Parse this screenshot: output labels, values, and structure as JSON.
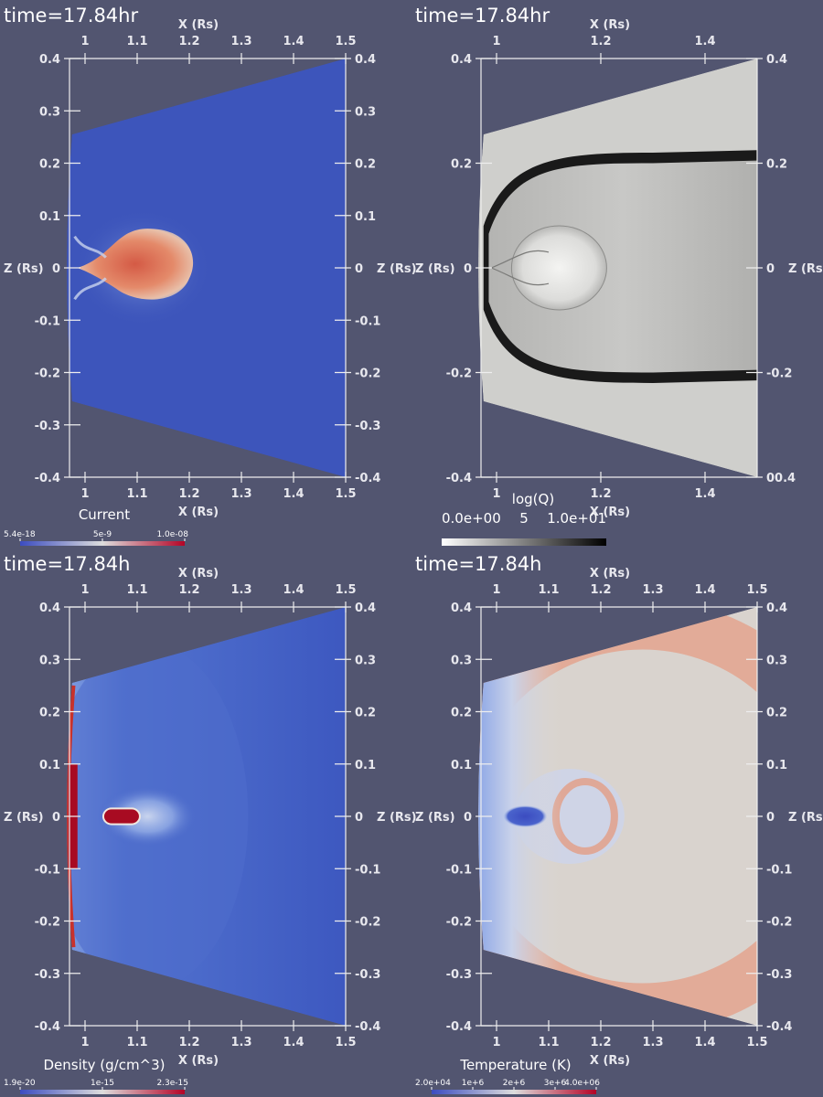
{
  "chart_data": [
    {
      "type": "heatmap",
      "time_label": "time=17.84hr",
      "quantity": "Current",
      "colorbar": {
        "title": "Current",
        "ticks": [
          "5.4e-18",
          "5e-9",
          "1.0e-08"
        ],
        "colors": [
          "#3b4cc0",
          "#dddddd",
          "#b40426"
        ]
      },
      "xlabel": "X (Rs)",
      "ylabel": "Z (Rs)",
      "xticks": [
        "1",
        "1.1",
        "1.2",
        "1.3",
        "1.4",
        "1.5"
      ],
      "yticks": [
        "0.4",
        "0.3",
        "0.2",
        "0.1",
        "0",
        "-0.1",
        "-0.2",
        "-0.3",
        "-0.4"
      ],
      "xlim": [
        0.97,
        1.5
      ],
      "ylim": [
        -0.4,
        0.4
      ],
      "features": {
        "background": "#3d55bb",
        "flux_rope_center": [
          1.1,
          0.0
        ]
      }
    },
    {
      "type": "heatmap",
      "time_label": "time=17.84hr",
      "quantity": "log(Q)",
      "colorbar": {
        "title": "log(Q)",
        "ticks": [
          "0.0e+00",
          "5",
          "1.0e+01"
        ],
        "colors": [
          "#ffffff",
          "#888888",
          "#000000"
        ]
      },
      "xlabel": "X (Rs)",
      "ylabel": "Z (Rs)",
      "xticks": [
        "1",
        "1.2",
        "1.4"
      ],
      "yticks": [
        "0.4",
        "0.2",
        "0",
        "-0.2",
        "-0.4"
      ],
      "right_yticks": [
        "0.4",
        "0.2",
        "0",
        "-0.2",
        "00.4"
      ],
      "xlim": [
        0.97,
        1.5
      ],
      "ylim": [
        -0.4,
        0.4
      ],
      "features": {
        "background": "#cfcfcc"
      }
    },
    {
      "type": "heatmap",
      "time_label": "time=17.84h",
      "quantity": "Density (g/cm^3)",
      "colorbar": {
        "title": "Density (g/cm^3)",
        "ticks": [
          "1.9e-20",
          "1e-15",
          "2.3e-15"
        ],
        "colors": [
          "#3b4cc0",
          "#dddddd",
          "#b40426"
        ]
      },
      "xlabel": "X (Rs)",
      "ylabel": "Z (Rs)",
      "xticks": [
        "1",
        "1.1",
        "1.2",
        "1.3",
        "1.4",
        "1.5"
      ],
      "yticks": [
        "0.4",
        "0.3",
        "0.2",
        "0.1",
        "0",
        "-0.1",
        "-0.2",
        "-0.3",
        "-0.4"
      ],
      "xlim": [
        0.97,
        1.5
      ],
      "ylim": [
        -0.4,
        0.4
      ],
      "features": {
        "background": "#4463c8",
        "flux_rope_center": [
          1.07,
          0.0
        ]
      }
    },
    {
      "type": "heatmap",
      "time_label": "time=17.84h",
      "quantity": "Temperature (K)",
      "colorbar": {
        "title": "Temperature (K)",
        "ticks": [
          "2.0e+04",
          "1e+6",
          "2e+6",
          "3e+6",
          "4.0e+06"
        ],
        "colors": [
          "#3b4cc0",
          "#dddddd",
          "#b40426"
        ]
      },
      "xlabel": "X (Rs)",
      "ylabel": "Z (Rs)",
      "xticks": [
        "1",
        "1.1",
        "1.2",
        "1.3",
        "1.4",
        "1.5"
      ],
      "yticks": [
        "0.4",
        "0.3",
        "0.2",
        "0.1",
        "0",
        "-0.1",
        "-0.2",
        "-0.3",
        "-0.4"
      ],
      "xlim": [
        0.97,
        1.5
      ],
      "ylim": [
        -0.4,
        0.4
      ],
      "features": {
        "background": "#d9d3ce",
        "cavity_center": [
          1.05,
          0.0
        ]
      }
    }
  ]
}
